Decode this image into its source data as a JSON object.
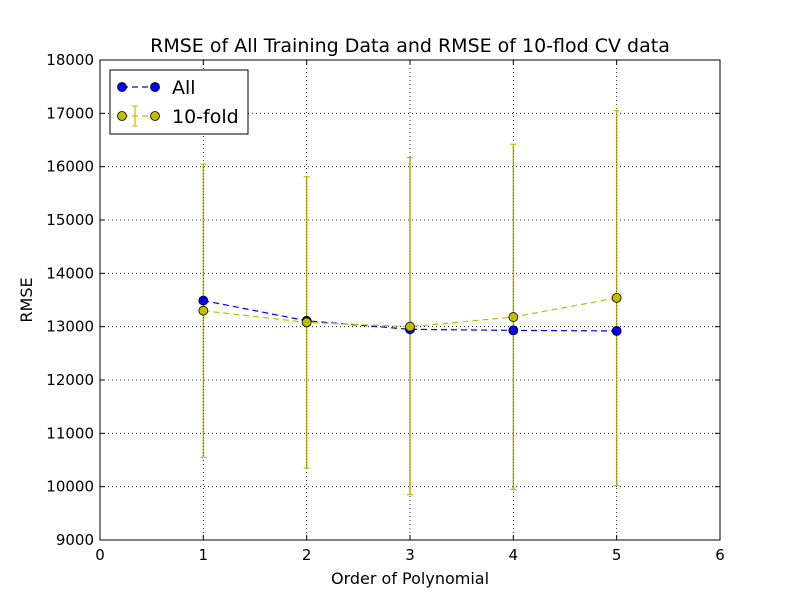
{
  "chart_data": {
    "type": "line",
    "title": "RMSE of All Training Data and RMSE of 10-flod CV data",
    "xlabel": "Order of Polynomial",
    "ylabel": "RMSE",
    "xlim": [
      0,
      6
    ],
    "ylim": [
      9000,
      18000
    ],
    "xticks": [
      "0",
      "1",
      "2",
      "3",
      "4",
      "5",
      "6"
    ],
    "yticks": [
      "9000",
      "10000",
      "11000",
      "12000",
      "13000",
      "14000",
      "15000",
      "16000",
      "17000",
      "18000"
    ],
    "grid": true,
    "legend_position": "top-left",
    "series": [
      {
        "name": "All",
        "color": "#0000ff",
        "x": [
          1,
          2,
          3,
          4,
          5
        ],
        "y": [
          13490,
          13110,
          12950,
          12930,
          12920
        ],
        "line_style": "dashed",
        "marker": "circle"
      },
      {
        "name": "10-fold",
        "color": "#bfbf00",
        "x": [
          1,
          2,
          3,
          4,
          5
        ],
        "y": [
          13300,
          13080,
          13000,
          13180,
          13540
        ],
        "error_low": [
          10550,
          10350,
          9850,
          9950,
          10020
        ],
        "error_high": [
          16050,
          15810,
          16170,
          16420,
          17050
        ],
        "line_style": "dashed",
        "marker": "circle",
        "error_bars": true
      }
    ]
  }
}
